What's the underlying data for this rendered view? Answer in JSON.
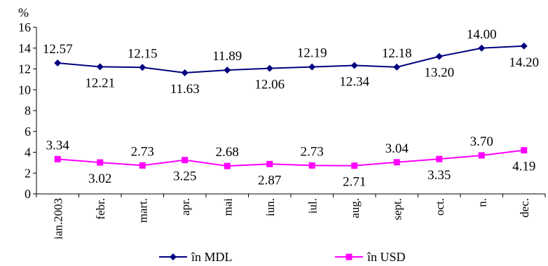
{
  "chart_data": {
    "type": "line",
    "ylabel": "%",
    "ylim": [
      0,
      16
    ],
    "yticks": [
      "0",
      "2",
      "4",
      "6",
      "8",
      "10",
      "12",
      "14",
      "16"
    ],
    "categories": [
      "ian.2003",
      "febr.",
      "mart.",
      "apr.",
      "mai",
      "iun.",
      "iul.",
      "aug.",
      "sept.",
      "oct.",
      "n.",
      "dec."
    ],
    "series": [
      {
        "name": "în MDL",
        "color": "#000080",
        "marker": "diamond",
        "values": [
          12.57,
          12.21,
          12.15,
          11.63,
          11.89,
          12.06,
          12.19,
          12.34,
          12.18,
          13.2,
          14.0,
          14.2
        ],
        "labels": [
          "12.57",
          "12.21",
          "12.15",
          "11.63",
          "11.89",
          "12.06",
          "12.19",
          "12.34",
          "12.18",
          "13.20",
          "14.00",
          "14.20"
        ]
      },
      {
        "name": "în USD",
        "color": "#ff00ff",
        "marker": "square",
        "values": [
          3.34,
          3.02,
          2.73,
          3.25,
          2.68,
          2.87,
          2.73,
          2.71,
          3.04,
          3.35,
          3.7,
          4.19
        ],
        "labels": [
          "3.34",
          "3.02",
          "2.73",
          "3.25",
          "2.68",
          "2.87",
          "2.73",
          "2.71",
          "3.04",
          "3.35",
          "3.70",
          "4.19"
        ]
      }
    ],
    "legend_position": "bottom",
    "grid": false
  }
}
